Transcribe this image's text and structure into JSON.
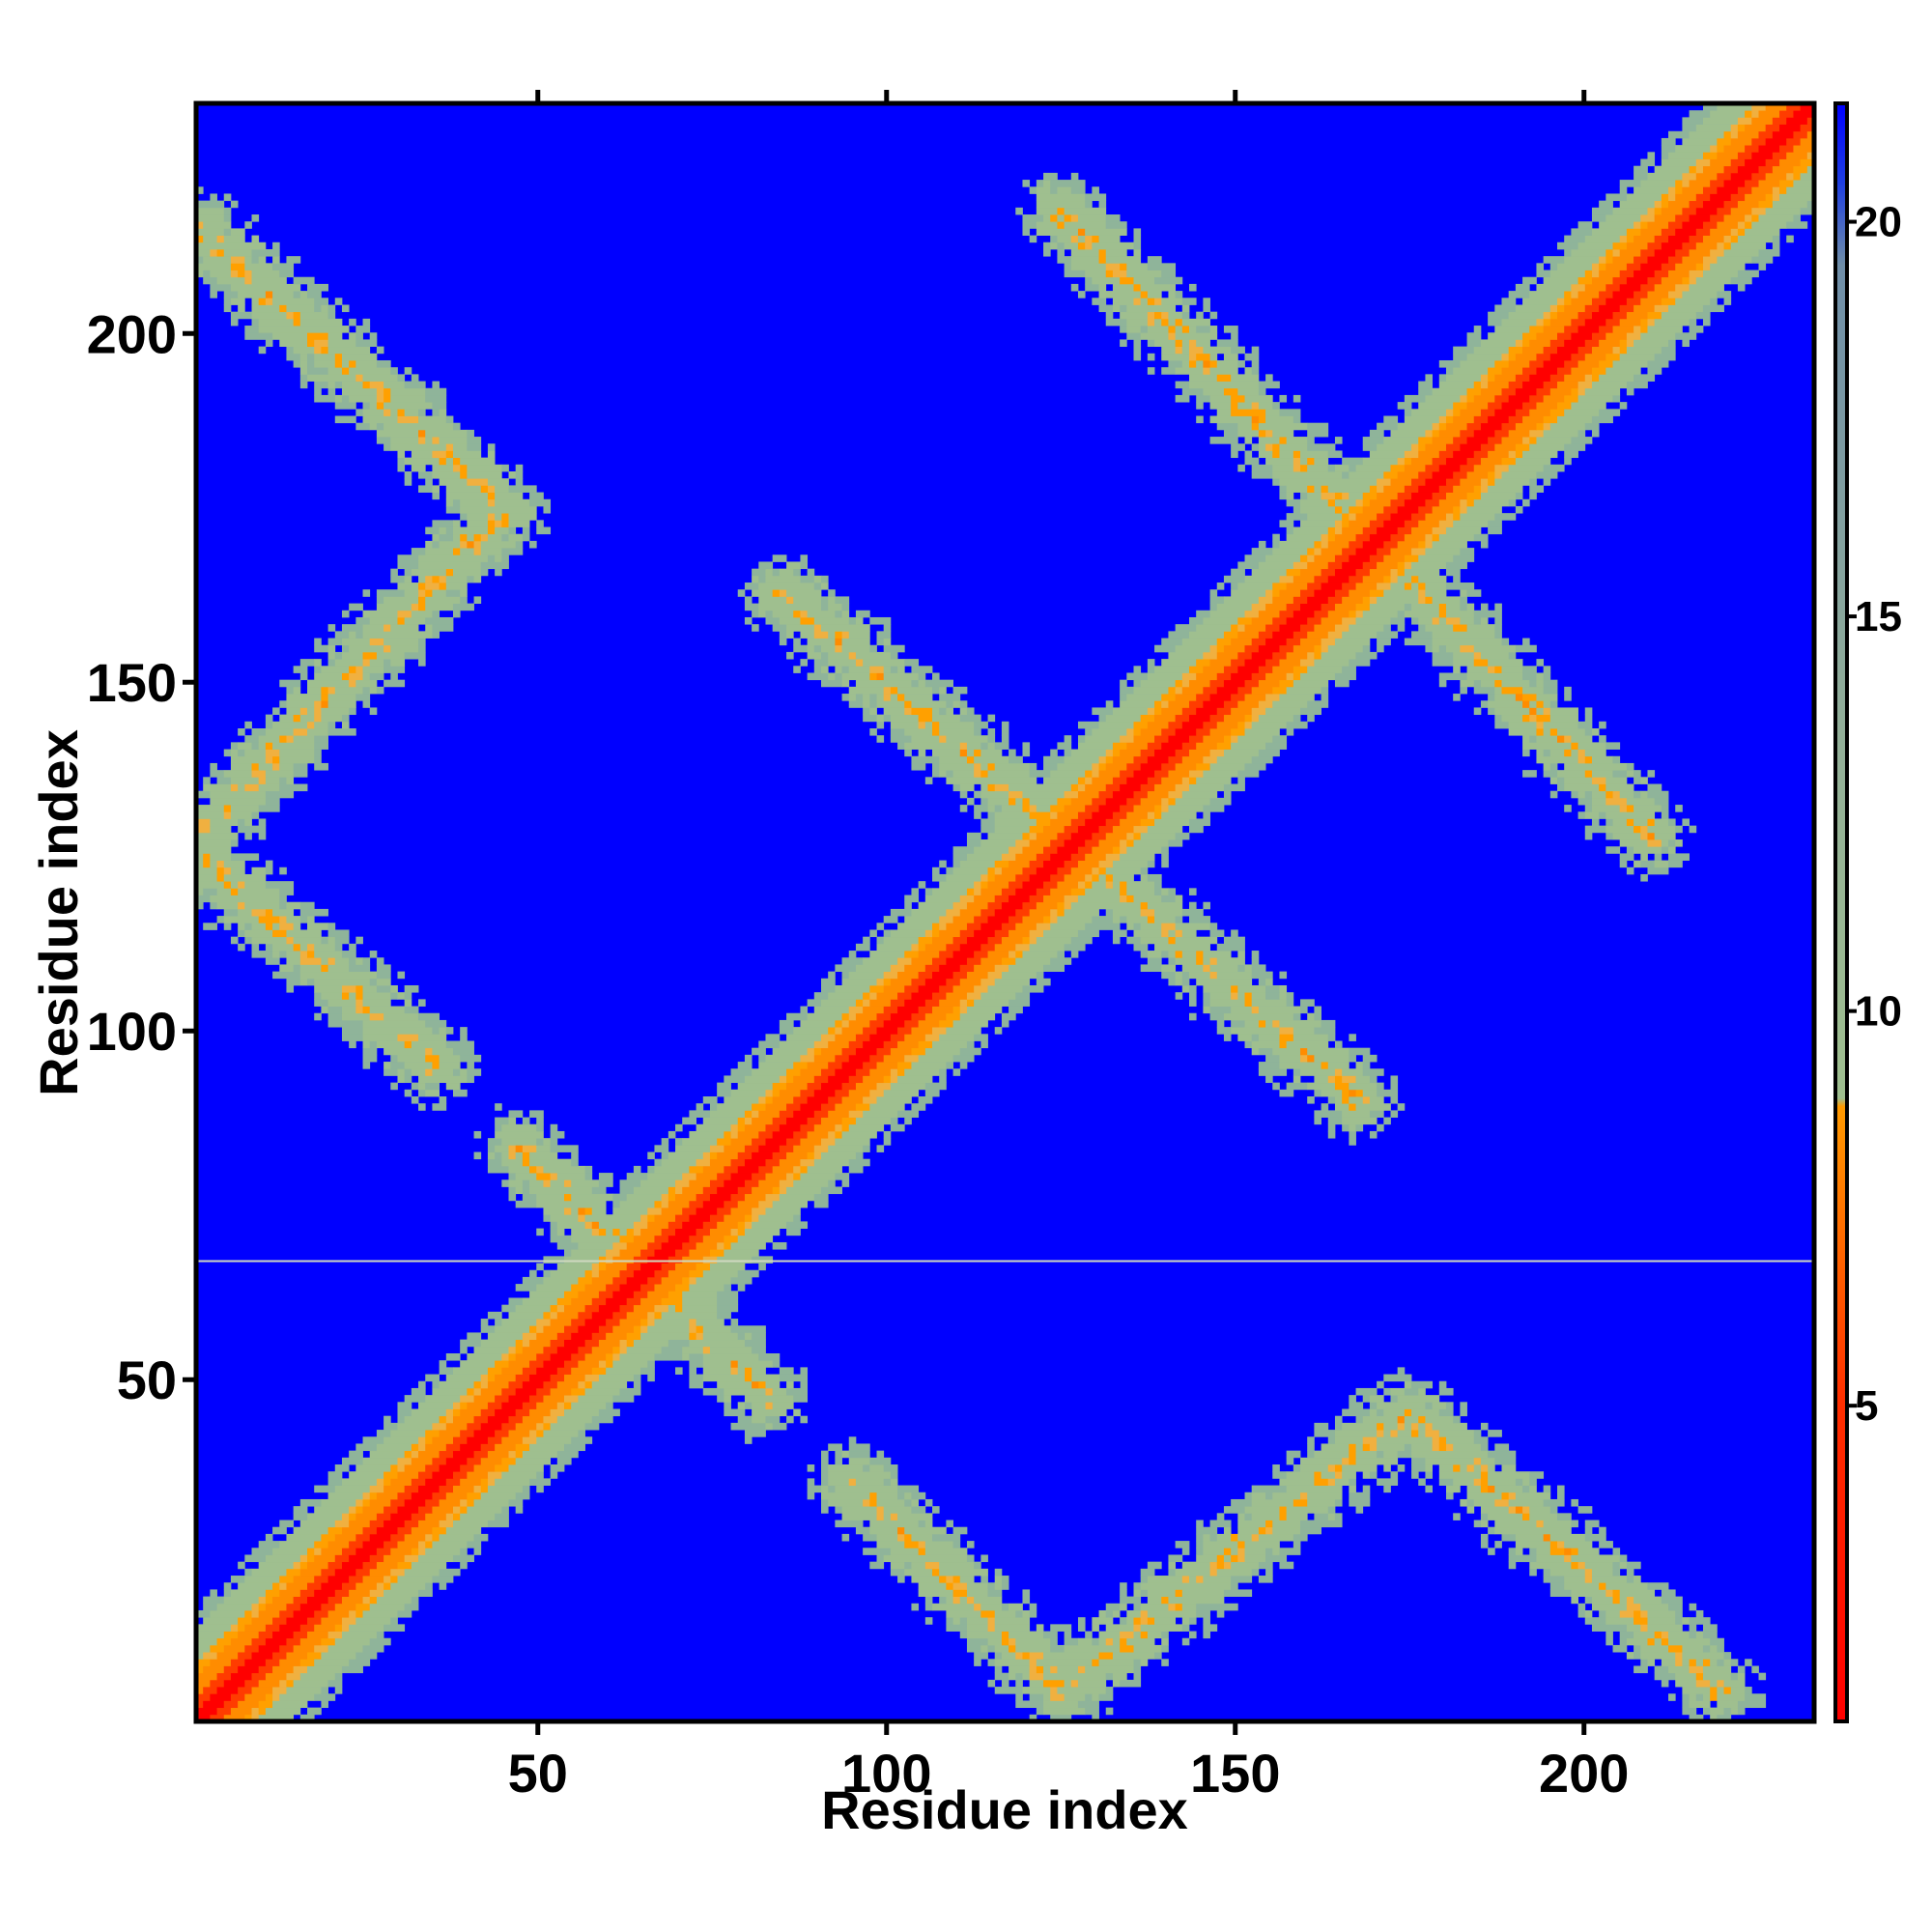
{
  "chart_data": {
    "type": "heatmap",
    "title": "",
    "xlabel": "Residue index",
    "ylabel": "Residue index",
    "xlim": [
      1,
      233
    ],
    "ylim": [
      1,
      233
    ],
    "x_ticks": [
      "50",
      "100",
      "150",
      "200"
    ],
    "y_ticks": [
      "50",
      "100",
      "150",
      "200"
    ],
    "x_tick_values": [
      50,
      100,
      150,
      200
    ],
    "y_tick_values": [
      50,
      100,
      150,
      200
    ],
    "colorbar": {
      "ticks": [
        "5",
        "10",
        "15",
        "20"
      ],
      "tick_values": [
        5,
        10,
        15,
        20
      ],
      "range": [
        1,
        21.5
      ],
      "colors": {
        "low": "#ff0000",
        "mid_low": "#ff8c00",
        "mid": "#9fbf8f",
        "mid_high": "#7a96a8",
        "high": "#0000ff"
      }
    },
    "background_value": 21,
    "features": {
      "diagonal": {
        "from": 1,
        "to": 233
      },
      "bands": [
        {
          "name": "antidiagonal-top-left",
          "x": [
            1,
            45
          ],
          "y": [
            215,
            175
          ]
        },
        {
          "name": "antidiagonal-center",
          "x": [
            85,
            168
          ],
          "y": [
            163,
            90
          ]
        },
        {
          "name": "antidiagonal-upper-right",
          "x": [
            125,
            210
          ],
          "y": [
            218,
            128
          ]
        },
        {
          "name": "antidiagonal-bottom-right",
          "x": [
            175,
            220
          ],
          "y": [
            45,
            5
          ]
        },
        {
          "name": "antidiagonal-bottom-mid",
          "x": [
            95,
            125
          ],
          "y": [
            35,
            5
          ]
        },
        {
          "name": "rising-left",
          "x": [
            1,
            45
          ],
          "y": [
            128,
            175
          ]
        },
        {
          "name": "rising-bottom",
          "x": [
            125,
            175
          ],
          "y": [
            5,
            45
          ]
        },
        {
          "name": "falling-left",
          "x": [
            1,
            35
          ],
          "y": [
            125,
            95
          ]
        },
        {
          "name": "star-center",
          "x": [
            65,
            65
          ],
          "y": [
            65,
            65
          ]
        }
      ],
      "horizontal_line_y": 67
    }
  }
}
